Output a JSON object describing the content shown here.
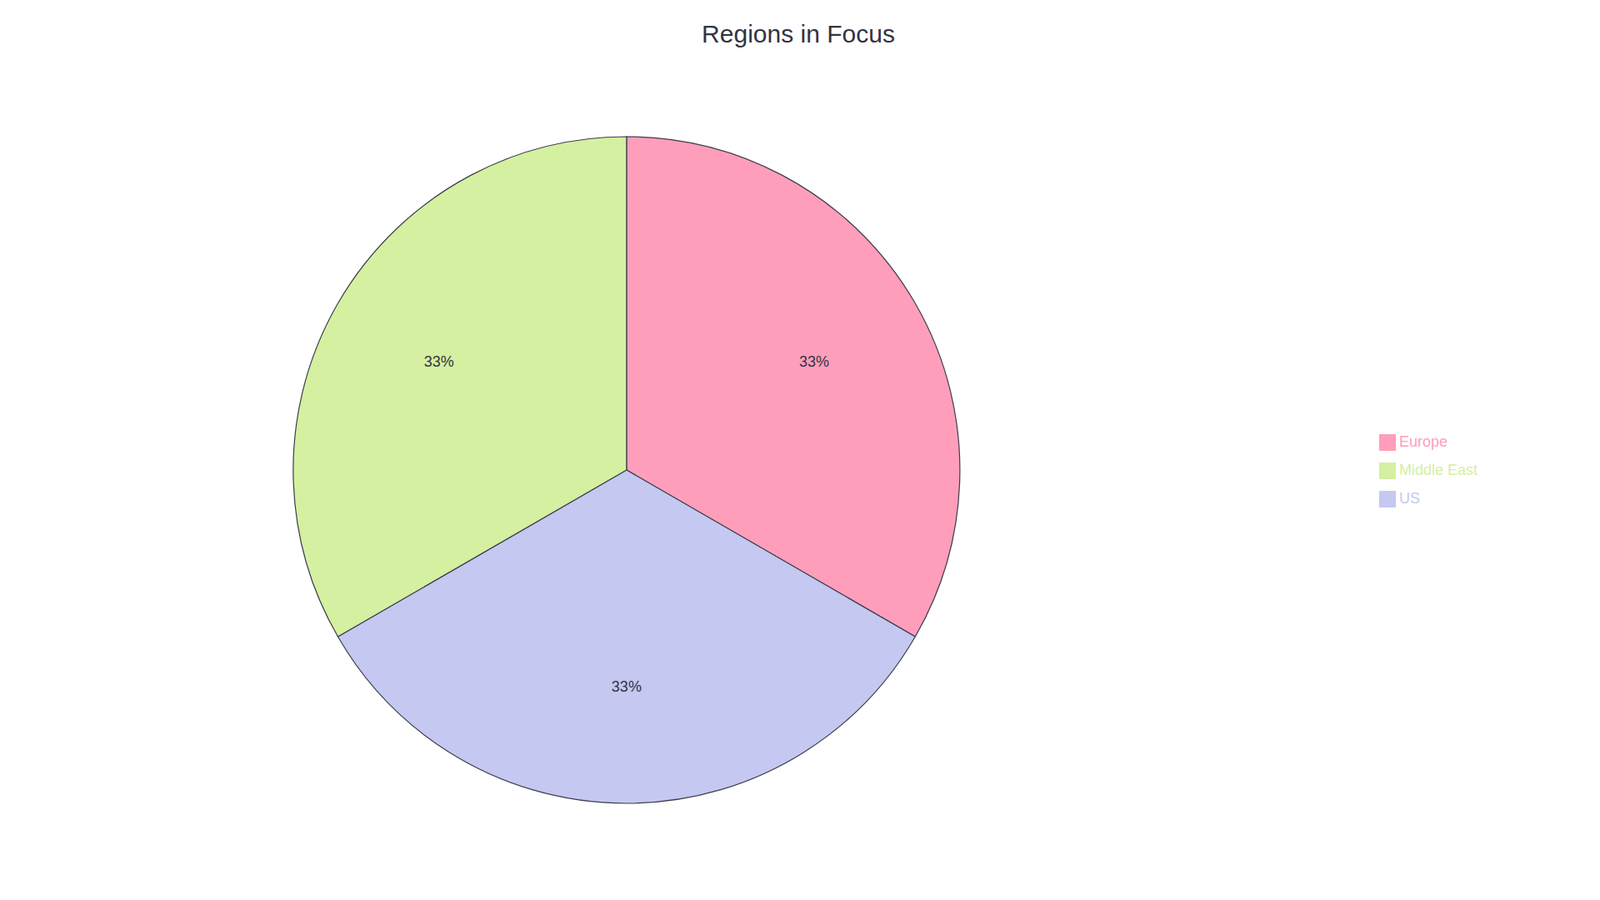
{
  "chart_data": {
    "type": "pie",
    "title": "Regions in Focus",
    "categories": [
      "Europe",
      "US",
      "Middle East"
    ],
    "values": [
      33,
      33,
      33
    ],
    "value_labels": [
      "33%",
      "33%",
      "33%"
    ],
    "colors": [
      "#FF9EBB",
      "#C5C8F0",
      "#D4F0A0"
    ],
    "data_labels": true,
    "legend": "right"
  }
}
